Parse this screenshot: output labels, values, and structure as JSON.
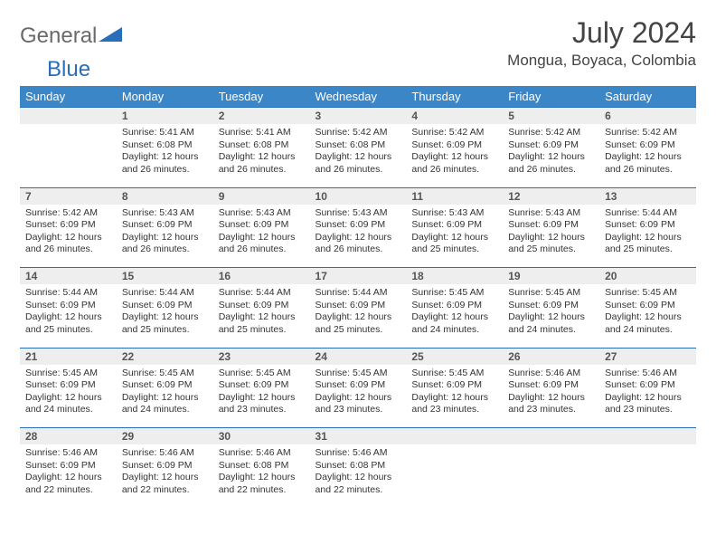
{
  "logo": {
    "part1": "General",
    "part2": "Blue"
  },
  "title": "July 2024",
  "location": "Mongua, Boyaca, Colombia",
  "colors": {
    "header_bg": "#3b86c7",
    "header_border": "#2a6db8",
    "daynum_bg": "#eeeeee",
    "text": "#333333",
    "logo_gray": "#6a6a6a",
    "logo_blue": "#2a6db8"
  },
  "weekdays": [
    "Sunday",
    "Monday",
    "Tuesday",
    "Wednesday",
    "Thursday",
    "Friday",
    "Saturday"
  ],
  "weeks": [
    {
      "nums": [
        "",
        "1",
        "2",
        "3",
        "4",
        "5",
        "6"
      ],
      "cells": [
        null,
        {
          "sunrise": "Sunrise: 5:41 AM",
          "sunset": "Sunset: 6:08 PM",
          "day1": "Daylight: 12 hours",
          "day2": "and 26 minutes."
        },
        {
          "sunrise": "Sunrise: 5:41 AM",
          "sunset": "Sunset: 6:08 PM",
          "day1": "Daylight: 12 hours",
          "day2": "and 26 minutes."
        },
        {
          "sunrise": "Sunrise: 5:42 AM",
          "sunset": "Sunset: 6:08 PM",
          "day1": "Daylight: 12 hours",
          "day2": "and 26 minutes."
        },
        {
          "sunrise": "Sunrise: 5:42 AM",
          "sunset": "Sunset: 6:09 PM",
          "day1": "Daylight: 12 hours",
          "day2": "and 26 minutes."
        },
        {
          "sunrise": "Sunrise: 5:42 AM",
          "sunset": "Sunset: 6:09 PM",
          "day1": "Daylight: 12 hours",
          "day2": "and 26 minutes."
        },
        {
          "sunrise": "Sunrise: 5:42 AM",
          "sunset": "Sunset: 6:09 PM",
          "day1": "Daylight: 12 hours",
          "day2": "and 26 minutes."
        }
      ]
    },
    {
      "nums": [
        "7",
        "8",
        "9",
        "10",
        "11",
        "12",
        "13"
      ],
      "cells": [
        {
          "sunrise": "Sunrise: 5:42 AM",
          "sunset": "Sunset: 6:09 PM",
          "day1": "Daylight: 12 hours",
          "day2": "and 26 minutes."
        },
        {
          "sunrise": "Sunrise: 5:43 AM",
          "sunset": "Sunset: 6:09 PM",
          "day1": "Daylight: 12 hours",
          "day2": "and 26 minutes."
        },
        {
          "sunrise": "Sunrise: 5:43 AM",
          "sunset": "Sunset: 6:09 PM",
          "day1": "Daylight: 12 hours",
          "day2": "and 26 minutes."
        },
        {
          "sunrise": "Sunrise: 5:43 AM",
          "sunset": "Sunset: 6:09 PM",
          "day1": "Daylight: 12 hours",
          "day2": "and 26 minutes."
        },
        {
          "sunrise": "Sunrise: 5:43 AM",
          "sunset": "Sunset: 6:09 PM",
          "day1": "Daylight: 12 hours",
          "day2": "and 25 minutes."
        },
        {
          "sunrise": "Sunrise: 5:43 AM",
          "sunset": "Sunset: 6:09 PM",
          "day1": "Daylight: 12 hours",
          "day2": "and 25 minutes."
        },
        {
          "sunrise": "Sunrise: 5:44 AM",
          "sunset": "Sunset: 6:09 PM",
          "day1": "Daylight: 12 hours",
          "day2": "and 25 minutes."
        }
      ]
    },
    {
      "nums": [
        "14",
        "15",
        "16",
        "17",
        "18",
        "19",
        "20"
      ],
      "cells": [
        {
          "sunrise": "Sunrise: 5:44 AM",
          "sunset": "Sunset: 6:09 PM",
          "day1": "Daylight: 12 hours",
          "day2": "and 25 minutes."
        },
        {
          "sunrise": "Sunrise: 5:44 AM",
          "sunset": "Sunset: 6:09 PM",
          "day1": "Daylight: 12 hours",
          "day2": "and 25 minutes."
        },
        {
          "sunrise": "Sunrise: 5:44 AM",
          "sunset": "Sunset: 6:09 PM",
          "day1": "Daylight: 12 hours",
          "day2": "and 25 minutes."
        },
        {
          "sunrise": "Sunrise: 5:44 AM",
          "sunset": "Sunset: 6:09 PM",
          "day1": "Daylight: 12 hours",
          "day2": "and 25 minutes."
        },
        {
          "sunrise": "Sunrise: 5:45 AM",
          "sunset": "Sunset: 6:09 PM",
          "day1": "Daylight: 12 hours",
          "day2": "and 24 minutes."
        },
        {
          "sunrise": "Sunrise: 5:45 AM",
          "sunset": "Sunset: 6:09 PM",
          "day1": "Daylight: 12 hours",
          "day2": "and 24 minutes."
        },
        {
          "sunrise": "Sunrise: 5:45 AM",
          "sunset": "Sunset: 6:09 PM",
          "day1": "Daylight: 12 hours",
          "day2": "and 24 minutes."
        }
      ]
    },
    {
      "nums": [
        "21",
        "22",
        "23",
        "24",
        "25",
        "26",
        "27"
      ],
      "cells": [
        {
          "sunrise": "Sunrise: 5:45 AM",
          "sunset": "Sunset: 6:09 PM",
          "day1": "Daylight: 12 hours",
          "day2": "and 24 minutes."
        },
        {
          "sunrise": "Sunrise: 5:45 AM",
          "sunset": "Sunset: 6:09 PM",
          "day1": "Daylight: 12 hours",
          "day2": "and 24 minutes."
        },
        {
          "sunrise": "Sunrise: 5:45 AM",
          "sunset": "Sunset: 6:09 PM",
          "day1": "Daylight: 12 hours",
          "day2": "and 23 minutes."
        },
        {
          "sunrise": "Sunrise: 5:45 AM",
          "sunset": "Sunset: 6:09 PM",
          "day1": "Daylight: 12 hours",
          "day2": "and 23 minutes."
        },
        {
          "sunrise": "Sunrise: 5:45 AM",
          "sunset": "Sunset: 6:09 PM",
          "day1": "Daylight: 12 hours",
          "day2": "and 23 minutes."
        },
        {
          "sunrise": "Sunrise: 5:46 AM",
          "sunset": "Sunset: 6:09 PM",
          "day1": "Daylight: 12 hours",
          "day2": "and 23 minutes."
        },
        {
          "sunrise": "Sunrise: 5:46 AM",
          "sunset": "Sunset: 6:09 PM",
          "day1": "Daylight: 12 hours",
          "day2": "and 23 minutes."
        }
      ]
    },
    {
      "nums": [
        "28",
        "29",
        "30",
        "31",
        "",
        "",
        ""
      ],
      "cells": [
        {
          "sunrise": "Sunrise: 5:46 AM",
          "sunset": "Sunset: 6:09 PM",
          "day1": "Daylight: 12 hours",
          "day2": "and 22 minutes."
        },
        {
          "sunrise": "Sunrise: 5:46 AM",
          "sunset": "Sunset: 6:09 PM",
          "day1": "Daylight: 12 hours",
          "day2": "and 22 minutes."
        },
        {
          "sunrise": "Sunrise: 5:46 AM",
          "sunset": "Sunset: 6:08 PM",
          "day1": "Daylight: 12 hours",
          "day2": "and 22 minutes."
        },
        {
          "sunrise": "Sunrise: 5:46 AM",
          "sunset": "Sunset: 6:08 PM",
          "day1": "Daylight: 12 hours",
          "day2": "and 22 minutes."
        },
        null,
        null,
        null
      ]
    }
  ]
}
